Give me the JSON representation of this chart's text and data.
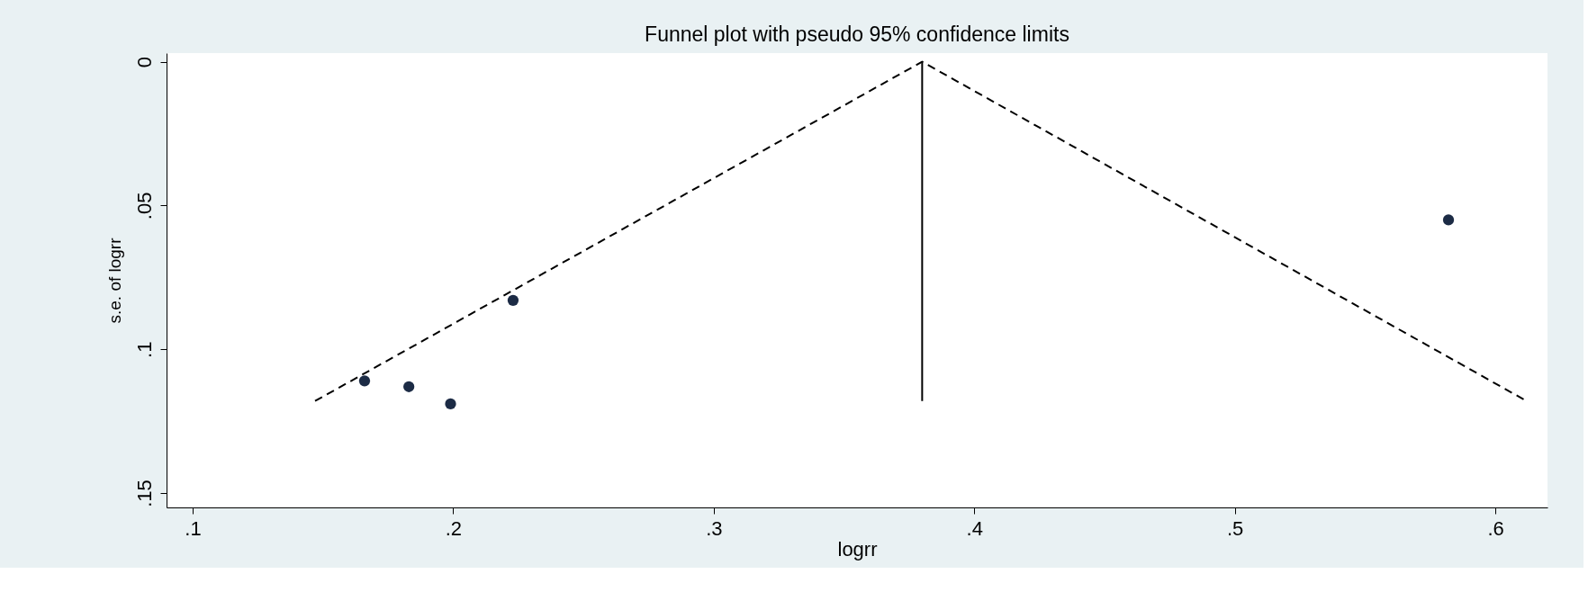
{
  "chart_data": {
    "type": "scatter",
    "title": "Funnel plot with pseudo 95% confidence limits",
    "xlabel": "logrr",
    "ylabel": "s.e. of logrr",
    "xlim": [
      0.09,
      0.62
    ],
    "ylim": [
      0.155,
      -0.003
    ],
    "xticks": [
      {
        "value": 0.1,
        "label": ".1"
      },
      {
        "value": 0.2,
        "label": ".2"
      },
      {
        "value": 0.3,
        "label": ".3"
      },
      {
        "value": 0.4,
        "label": ".4"
      },
      {
        "value": 0.5,
        "label": ".5"
      },
      {
        "value": 0.6,
        "label": ".6"
      }
    ],
    "yticks": [
      0,
      {
        "value": 0.05,
        "label": ".05"
      },
      {
        "value": 0.1,
        "label": ".1"
      },
      {
        "value": 0.15,
        "label": ".15"
      }
    ],
    "series": [
      {
        "color": "#1c2b45",
        "marker": "circle",
        "x": [
          0.166,
          0.183,
          0.199,
          0.223,
          0.582
        ],
        "values": [
          0.111,
          0.113,
          0.119,
          0.083,
          0.055
        ]
      },
      {
        "type": "line",
        "color": "#000000",
        "line_style": "dashed",
        "x": [
          0.147,
          0.38,
          0.612
        ],
        "values": [
          0.118,
          0,
          0.118
        ]
      },
      {
        "type": "line",
        "color": "#000000",
        "line_style": "solid",
        "x": [
          0.38,
          0.38
        ],
        "values": [
          0,
          0.118
        ]
      }
    ]
  }
}
